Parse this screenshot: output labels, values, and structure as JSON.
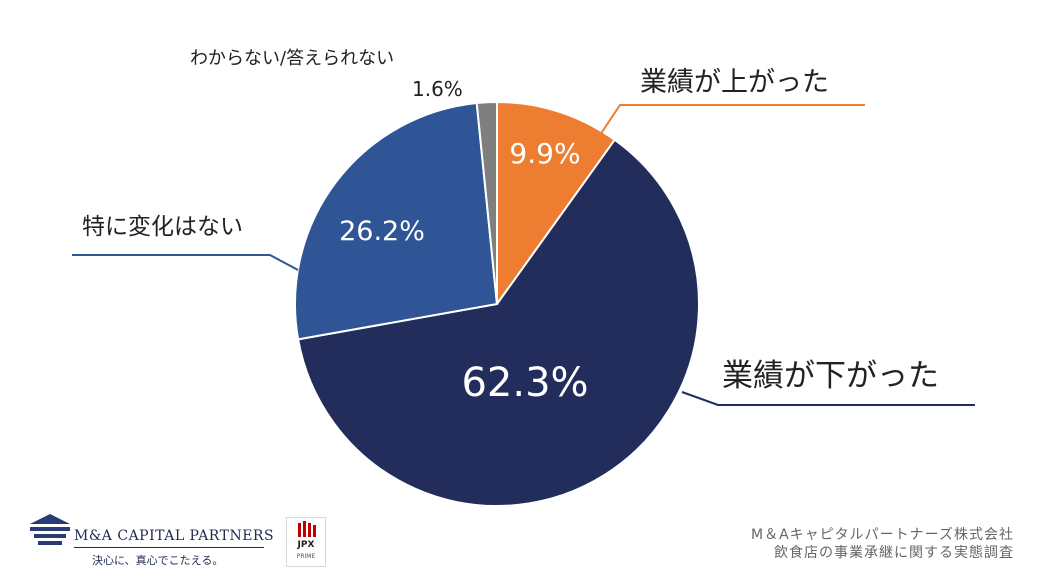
{
  "chart_data": {
    "type": "pie",
    "title": "",
    "slices": [
      {
        "label": "業績が上がった",
        "value": 9.9,
        "value_label": "9.9%",
        "color": "#ED7D31"
      },
      {
        "label": "業績が下がった",
        "value": 62.3,
        "value_label": "62.3%",
        "color": "#222D5C"
      },
      {
        "label": "特に変化はない",
        "value": 26.2,
        "value_label": "26.2%",
        "color": "#2F5597"
      },
      {
        "label": "わからない/答えられない",
        "value": 1.6,
        "value_label": "1.6%",
        "color": "#7F7F7F"
      }
    ],
    "start_angle_deg": 0,
    "direction": "clockwise"
  },
  "branding": {
    "company_name": "M&A CAPITAL PARTNERS",
    "tagline": "決心に、真心でこたえる。",
    "exchange_name": "JPX",
    "exchange_market": "PRIME"
  },
  "source": {
    "line1": "M＆Aキャピタルパートナーズ株式会社",
    "line2": "飲食店の事業承継に関する実態調査"
  }
}
